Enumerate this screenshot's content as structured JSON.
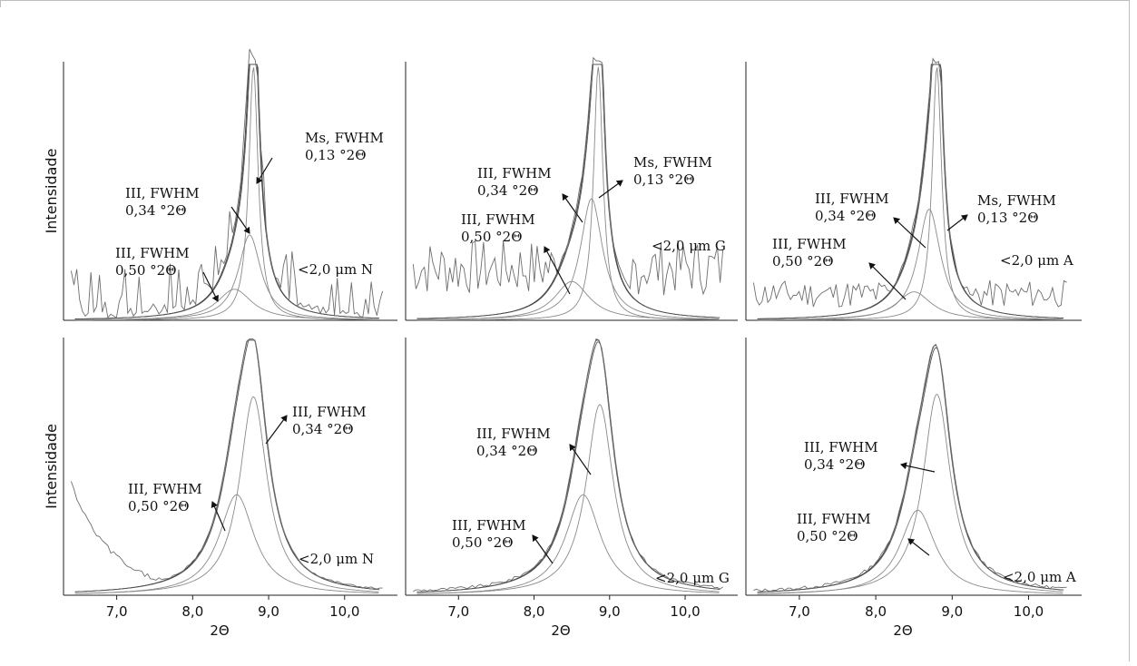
{
  "panels": [
    {
      "id": "top-N",
      "row": 0,
      "col": 0,
      "sample": "<2,0 μm N",
      "yaxis_label": "Intensidade",
      "annotations": [
        {
          "line1": "Ms, FWHM",
          "line2": "0,13 °2Θ"
        },
        {
          "line1": "III, FWHM",
          "line2": "0,34 °2Θ"
        },
        {
          "line1": "III, FWHM",
          "line2": "0,50 °2Θ"
        }
      ]
    },
    {
      "id": "top-G",
      "row": 0,
      "col": 1,
      "sample": "<2,0 μm G",
      "yaxis_label": "",
      "annotations": [
        {
          "line1": "Ms, FWHM",
          "line2": "0,13 °2Θ"
        },
        {
          "line1": "III, FWHM",
          "line2": "0,34 °2Θ"
        },
        {
          "line1": "III, FWHM",
          "line2": "0,50 °2Θ"
        }
      ]
    },
    {
      "id": "top-A",
      "row": 0,
      "col": 2,
      "sample": "<2,0 μm A",
      "yaxis_label": "",
      "annotations": [
        {
          "line1": "Ms, FWHM",
          "line2": "0,13 °2Θ"
        },
        {
          "line1": "III, FWHM",
          "line2": "0,34 °2Θ"
        },
        {
          "line1": "III, FWHM",
          "line2": "0,50 °2Θ"
        }
      ]
    },
    {
      "id": "bot-N",
      "row": 1,
      "col": 0,
      "sample": "<2,0 μm N",
      "yaxis_label": "Intensidade",
      "annotations": [
        {
          "line1": "III, FWHM",
          "line2": "0,34 °2Θ"
        },
        {
          "line1": "III, FWHM",
          "line2": "0,50 °2Θ"
        }
      ]
    },
    {
      "id": "bot-G",
      "row": 1,
      "col": 1,
      "sample": "<2,0 μm G",
      "yaxis_label": "",
      "annotations": [
        {
          "line1": "III, FWHM",
          "line2": "0,34 °2Θ"
        },
        {
          "line1": "III, FWHM",
          "line2": "0,50 °2Θ"
        }
      ]
    },
    {
      "id": "bot-A",
      "row": 1,
      "col": 2,
      "sample": "<2,0 μm A",
      "yaxis_label": "",
      "annotations": [
        {
          "line1": "III, FWHM",
          "line2": "0,34 °2Θ"
        },
        {
          "line1": "III, FWHM",
          "line2": "0,50 °2Θ"
        }
      ]
    }
  ],
  "chart_data": [
    {
      "type": "line",
      "panel": "top-N",
      "title": "",
      "xlabel": "",
      "ylabel": "Intensidade",
      "xlim": [
        6.3,
        10.6
      ],
      "grid": false,
      "series": [
        {
          "name": "",
          "peak_2theta": 8.8,
          "fwhm": 0.13
        },
        {
          "name": "",
          "peak_2theta": 8.75,
          "fwhm": 0.34
        },
        {
          "name": "",
          "peak_2theta": 8.55,
          "fwhm": 0.5
        }
      ]
    },
    {
      "type": "line",
      "panel": "top-G",
      "title": "",
      "xlabel": "",
      "ylabel": "",
      "xlim": [
        6.3,
        10.6
      ],
      "grid": false,
      "series": [
        {
          "name": "",
          "peak_2theta": 8.85,
          "fwhm": 0.13
        },
        {
          "name": "",
          "peak_2theta": 8.75,
          "fwhm": 0.34
        },
        {
          "name": "",
          "peak_2theta": 8.5,
          "fwhm": 0.5
        }
      ]
    },
    {
      "type": "line",
      "panel": "top-A",
      "title": "",
      "xlabel": "",
      "ylabel": "",
      "xlim": [
        6.3,
        10.6
      ],
      "grid": false,
      "series": [
        {
          "name": "",
          "peak_2theta": 8.8,
          "fwhm": 0.13
        },
        {
          "name": "",
          "peak_2theta": 8.7,
          "fwhm": 0.34
        },
        {
          "name": "",
          "peak_2theta": 8.5,
          "fwhm": 0.5
        }
      ]
    },
    {
      "type": "line",
      "panel": "bot-N",
      "title": "",
      "xlabel": "2Θ",
      "ylabel": "Intensidade",
      "xlim": [
        6.3,
        10.6
      ],
      "grid": false,
      "xticks": [
        "7,0",
        "8,0",
        "9,0",
        "10,0"
      ],
      "series": [
        {
          "name": "",
          "peak_2theta": 8.8,
          "fwhm": 0.34
        },
        {
          "name": "",
          "peak_2theta": 8.55,
          "fwhm": 0.5
        }
      ]
    },
    {
      "type": "line",
      "panel": "bot-G",
      "title": "",
      "xlabel": "2Θ",
      "ylabel": "",
      "xlim": [
        6.3,
        10.6
      ],
      "grid": false,
      "xticks": [
        "7,0",
        "8,0",
        "9,0",
        "10,0"
      ],
      "series": [
        {
          "name": "",
          "peak_2theta": 8.85,
          "fwhm": 0.34
        },
        {
          "name": "",
          "peak_2theta": 8.65,
          "fwhm": 0.5
        }
      ]
    },
    {
      "type": "line",
      "panel": "bot-A",
      "title": "",
      "xlabel": "2Θ",
      "ylabel": "",
      "xlim": [
        6.3,
        10.6
      ],
      "grid": false,
      "xticks": [
        "7,0",
        "8,0",
        "9,0",
        "10,0"
      ],
      "series": [
        {
          "name": "",
          "peak_2theta": 8.8,
          "fwhm": 0.34
        },
        {
          "name": "",
          "peak_2theta": 8.55,
          "fwhm": 0.5
        }
      ]
    }
  ]
}
